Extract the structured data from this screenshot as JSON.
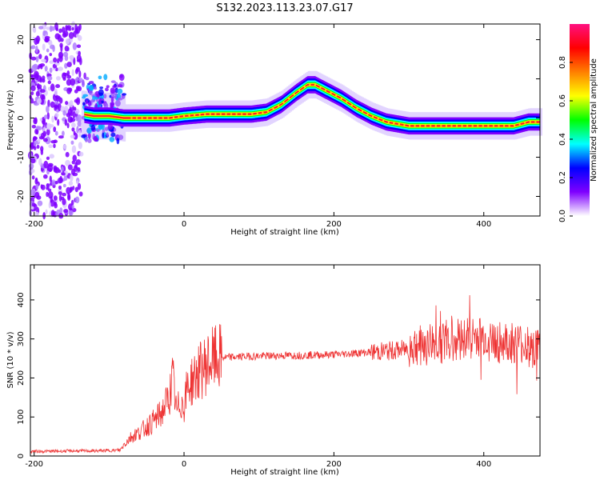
{
  "title": "S132.2023.113.23.07.G17",
  "chart_data": [
    {
      "type": "heatmap",
      "title": "",
      "xlabel": "Height of straight line (km)",
      "ylabel": "Frequency (Hz)",
      "xlim": [
        -205,
        475
      ],
      "ylim": [
        -25,
        24
      ],
      "xticks": [
        -200,
        0,
        200,
        400
      ],
      "yticks": [
        -20,
        -10,
        0,
        10,
        20
      ],
      "colorbar": {
        "label": "Normalized spectral amplitude",
        "range": [
          0,
          1
        ],
        "ticks": [
          0.0,
          0.2,
          0.4,
          0.6,
          0.8
        ],
        "colors": [
          "#ffffff",
          "#7f00ff",
          "#0000ff",
          "#00ffff",
          "#00ff00",
          "#ffff00",
          "#ff7f00",
          "#ff0000",
          "#ff1080"
        ]
      },
      "ridge": {
        "x": [
          -135,
          -120,
          -100,
          -80,
          -50,
          -20,
          0,
          30,
          60,
          90,
          110,
          130,
          150,
          165,
          175,
          190,
          210,
          230,
          250,
          270,
          300,
          330,
          360,
          400,
          440,
          460,
          475
        ],
        "y": [
          1,
          0.5,
          0.5,
          0,
          0,
          0,
          0.5,
          1,
          1,
          1,
          1.5,
          3.5,
          6.5,
          8.5,
          8.5,
          7,
          5,
          2.5,
          0.5,
          -1,
          -2,
          -2,
          -2,
          -2,
          -2,
          -1,
          -1
        ]
      },
      "noise_band_x": [
        -205,
        -137
      ]
    },
    {
      "type": "line",
      "title": "",
      "xlabel": "Height of straight line (km)",
      "ylabel": "SNR (10 * v/v)",
      "xlim": [
        -205,
        475
      ],
      "ylim": [
        0,
        490
      ],
      "xticks": [
        -200,
        0,
        200,
        400
      ],
      "yticks": [
        0,
        100,
        200,
        300,
        400
      ],
      "series": [
        {
          "color": "#ee3333",
          "x": [
            -205,
            -180,
            -150,
            -120,
            -100,
            -85,
            -80,
            -70,
            -60,
            -50,
            -40,
            -30,
            -20,
            -15,
            -10,
            -5,
            0,
            5,
            10,
            20,
            30,
            40,
            50,
            80,
            120,
            160,
            200,
            240,
            280,
            300,
            320,
            340,
            360,
            380,
            400,
            420,
            440,
            460,
            475
          ],
          "y": [
            12,
            12,
            13,
            13,
            14,
            15,
            30,
            50,
            60,
            75,
            90,
            110,
            150,
            200,
            110,
            140,
            130,
            180,
            190,
            215,
            235,
            248,
            252,
            255,
            257,
            258,
            260,
            265,
            270,
            275,
            285,
            290,
            298,
            305,
            300,
            290,
            285,
            280,
            275
          ]
        }
      ]
    }
  ]
}
